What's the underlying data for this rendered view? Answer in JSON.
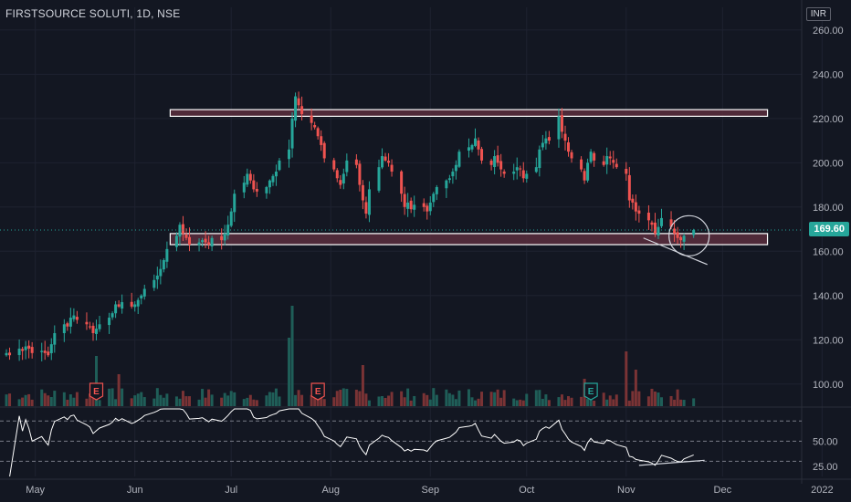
{
  "header": {
    "title": "FIRSTSOURCE SOLUTI, 1D, NSE",
    "currency": "INR"
  },
  "last_price": {
    "value": 169.6,
    "label": "169.60",
    "color": "#26a69a"
  },
  "colors": {
    "up": "#26a69a",
    "down": "#ef5350",
    "zone_fill": "#5a2e3d",
    "zone_border": "#ffffff",
    "rsi_line": "#ffffff",
    "bg": "#131722"
  },
  "chart_data": {
    "type": "candlestick",
    "ylim": [
      90,
      262
    ],
    "price_ticks": [
      "100.00",
      "120.00",
      "140.00",
      "160.00",
      "180.00",
      "200.00",
      "220.00",
      "240.00",
      "260.00"
    ],
    "price_tick_values": [
      100,
      120,
      140,
      160,
      180,
      200,
      220,
      240,
      260
    ],
    "x_ticks": [
      "May",
      "Jun",
      "Jul",
      "Aug",
      "Sep",
      "Oct",
      "Nov",
      "Dec",
      "2022"
    ],
    "x_tick_dates": [
      "2021-05-01",
      "2021-06-01",
      "2021-07-01",
      "2021-08-01",
      "2021-09-01",
      "2021-10-01",
      "2021-11-01",
      "2021-12-01",
      "2022-01-01"
    ],
    "x_range": [
      "2021-04-20",
      "2022-01-10"
    ],
    "closes": [
      114,
      113,
      116,
      115,
      117,
      116,
      114,
      115,
      114,
      113,
      118,
      123,
      127,
      126,
      130,
      131,
      129,
      127,
      126,
      123,
      125,
      127,
      130,
      132,
      136,
      135,
      137,
      135,
      136,
      138,
      140,
      143,
      147,
      149,
      152,
      156,
      161,
      167,
      172,
      168,
      166,
      163,
      164,
      165,
      164,
      163,
      166,
      165,
      168,
      172,
      178,
      186,
      191,
      195,
      192,
      188,
      187,
      189,
      192,
      194,
      196,
      201,
      206,
      220,
      230,
      226,
      222,
      218,
      216,
      212,
      208,
      202,
      197,
      193,
      190,
      195,
      201,
      199,
      190,
      183,
      177,
      188,
      198,
      203,
      201,
      200,
      196,
      186,
      180,
      182,
      179,
      181,
      180,
      178,
      182,
      186,
      189,
      192,
      193,
      196,
      199,
      205,
      207,
      208,
      211,
      206,
      201,
      199,
      203,
      200,
      197,
      195,
      196,
      198,
      197,
      193,
      195,
      198,
      206,
      209,
      211,
      210,
      221,
      214,
      210,
      205,
      202,
      197,
      192,
      200,
      205,
      201,
      199,
      203,
      202,
      200,
      198,
      195,
      183,
      182,
      178,
      177,
      174,
      172,
      168,
      171,
      175,
      171,
      168,
      166,
      165,
      167,
      169.6
    ],
    "events": [
      {
        "label": "E",
        "date": "2021-05-20",
        "color": "#ef5350"
      },
      {
        "label": "E",
        "date": "2021-07-28",
        "color": "#ef5350"
      },
      {
        "label": "E",
        "date": "2021-10-21",
        "color": "#26a69a"
      }
    ],
    "zones": [
      {
        "low": 221,
        "high": 224,
        "start": "2021-06-12",
        "end": "2021-12-15"
      },
      {
        "low": 163,
        "high": 168,
        "start": "2021-06-12",
        "end": "2021-12-15"
      }
    ],
    "rsi_ticks": [
      "25.00",
      "50.00"
    ],
    "rsi_tick_values": [
      25,
      50
    ],
    "rsi_ylim": [
      15,
      82
    ],
    "rsi_levels": [
      30,
      50,
      70
    ]
  }
}
